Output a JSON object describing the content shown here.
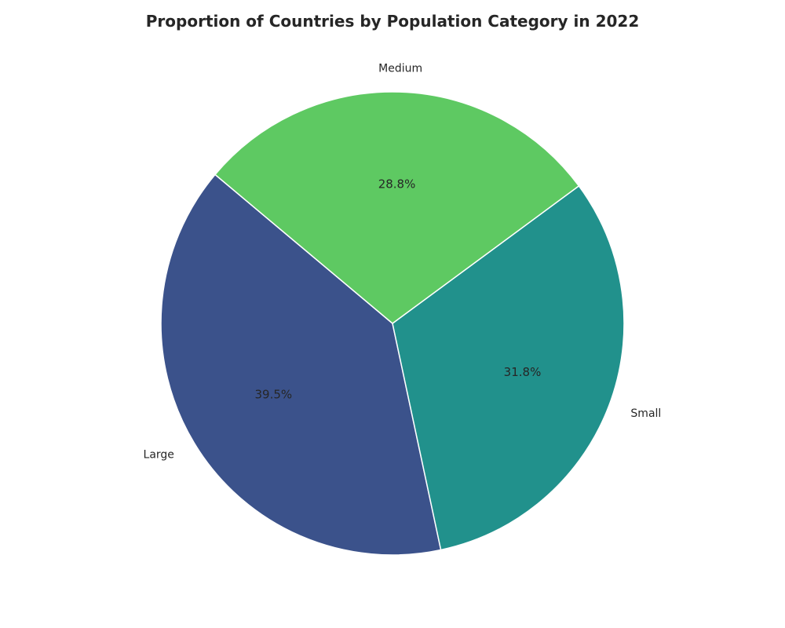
{
  "chart_data": {
    "type": "pie",
    "title": "Proportion of Countries by Population Category in 2022",
    "start_angle_deg": 140,
    "direction": "counterclockwise",
    "slices": [
      {
        "label": "Large",
        "value": 39.5,
        "pct_label": "39.5%",
        "color": "#3b528b"
      },
      {
        "label": "Small",
        "value": 31.8,
        "pct_label": "31.8%",
        "color": "#21918c"
      },
      {
        "label": "Medium",
        "value": 28.8,
        "pct_label": "28.8%",
        "color": "#5ec962"
      }
    ],
    "edge_color": "#ffffff"
  }
}
